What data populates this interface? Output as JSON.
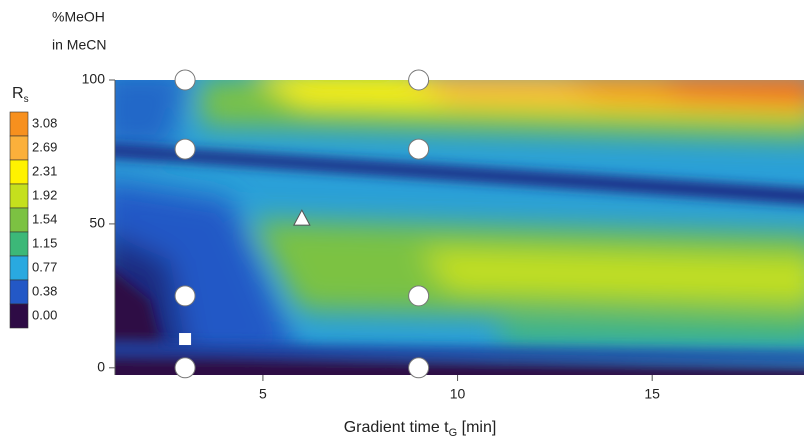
{
  "chart_data": {
    "type": "scatter",
    "ylabel": [
      "%MeOH",
      "in MeCN"
    ],
    "xlabel": [
      "Gradient time t",
      "G",
      " [min]"
    ],
    "xlim": [
      1.2,
      18.9
    ],
    "ylim": [
      -2.5,
      100
    ],
    "xticks": [
      5,
      10,
      15
    ],
    "yticks": [
      0,
      50,
      100
    ],
    "colorbar": {
      "title": [
        "R",
        "s"
      ],
      "ticks": [
        3.08,
        2.69,
        2.31,
        1.92,
        1.54,
        1.15,
        0.77,
        0.38,
        {
          "value": 0,
          "label": "0.00"
        }
      ],
      "colors": [
        "#f7901e",
        "#fbb03b",
        "#fff200",
        "#c5e01d",
        "#7cc242",
        "#3cb878",
        "#29a9e0",
        "#2358c6",
        "#2e0b45"
      ]
    },
    "series": [
      {
        "marker": "circle",
        "color": "#ffffff",
        "x": [
          3,
          9,
          3,
          9,
          3,
          9,
          3,
          9
        ],
        "values": [
          100,
          100,
          76,
          76,
          25,
          25,
          0,
          0
        ]
      },
      {
        "marker": "triangle",
        "color": "#ffffff",
        "x": [
          6
        ],
        "values": [
          52
        ]
      },
      {
        "marker": "square",
        "color": "#ffffff",
        "x": [
          3
        ],
        "values": [
          10
        ]
      }
    ]
  }
}
